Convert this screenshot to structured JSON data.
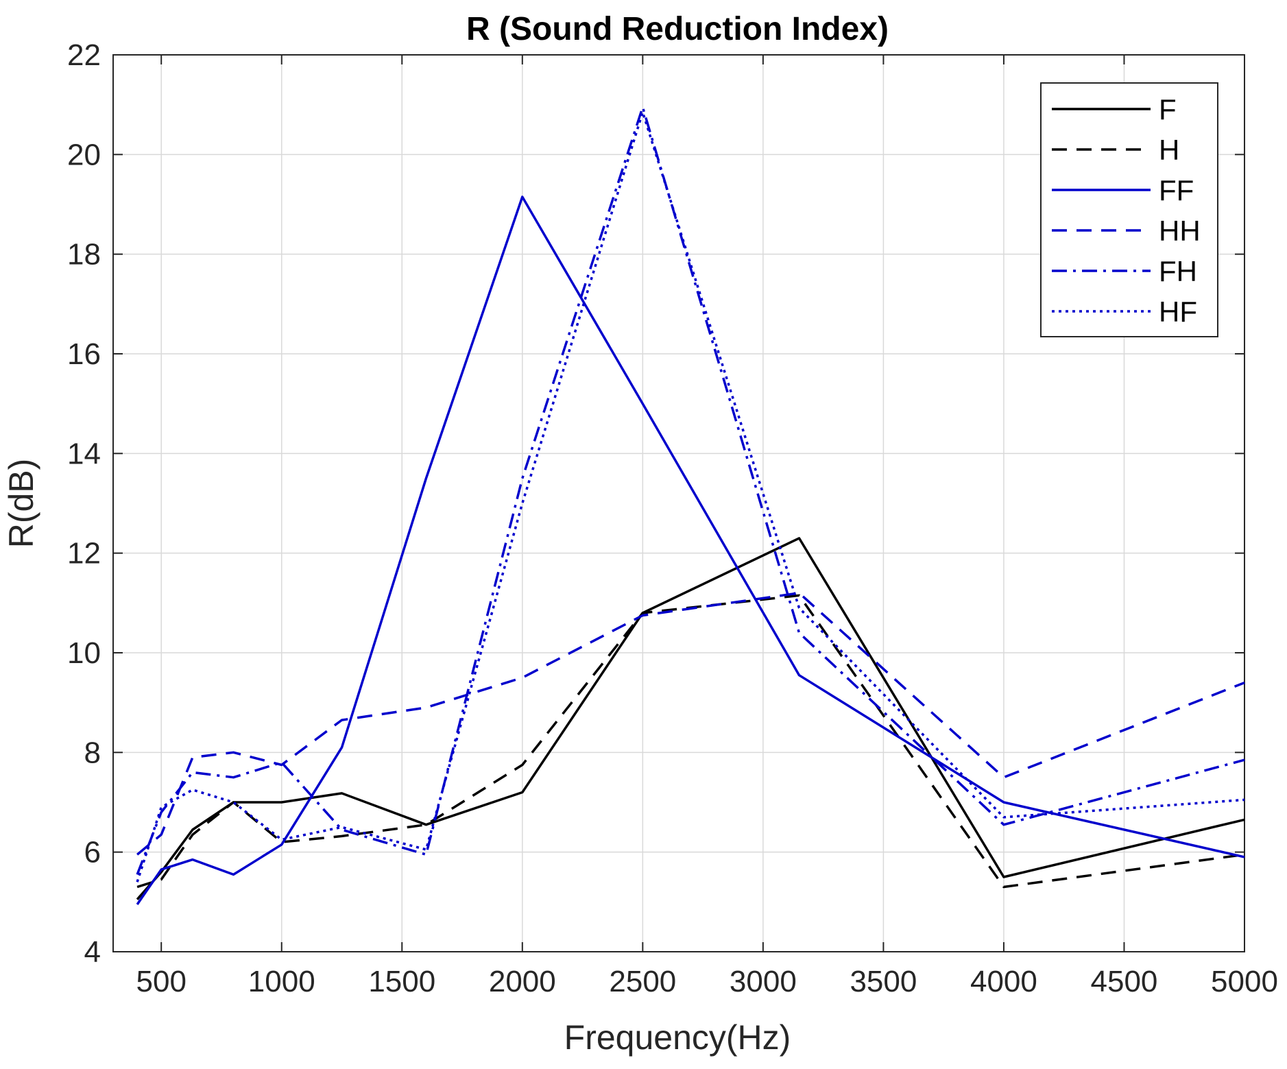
{
  "chart_data": {
    "type": "line",
    "title": "R (Sound Reduction Index)",
    "xlabel": "Frequency(Hz)",
    "ylabel": "R(dB)",
    "xlim": [
      300,
      5000
    ],
    "ylim": [
      4,
      22
    ],
    "xticks": [
      500,
      1000,
      1500,
      2000,
      2500,
      3000,
      3500,
      4000,
      4500,
      5000
    ],
    "yticks": [
      4,
      6,
      8,
      10,
      12,
      14,
      16,
      18,
      20,
      22
    ],
    "grid": true,
    "legend_position": "top-right",
    "x": [
      400,
      500,
      630,
      800,
      1000,
      1250,
      1600,
      2000,
      2500,
      3150,
      4000,
      5000
    ],
    "series": [
      {
        "name": "F",
        "color": "#000000",
        "dash": "solid",
        "values": [
          5.05,
          5.6,
          6.45,
          7.0,
          7.0,
          7.18,
          6.55,
          7.2,
          10.8,
          12.3,
          5.5,
          6.65
        ]
      },
      {
        "name": "H",
        "color": "#000000",
        "dash": "dashed",
        "values": [
          5.3,
          5.45,
          6.35,
          7.0,
          6.2,
          6.32,
          6.55,
          7.75,
          10.8,
          11.15,
          5.3,
          5.95
        ]
      },
      {
        "name": "FF",
        "color": "#0000cc",
        "dash": "solid",
        "values": [
          4.95,
          5.65,
          5.85,
          5.55,
          6.15,
          8.1,
          13.5,
          19.15,
          15.0,
          9.55,
          7.0,
          5.9
        ]
      },
      {
        "name": "HH",
        "color": "#0000cc",
        "dash": "dashed",
        "values": [
          5.95,
          6.35,
          7.9,
          8.0,
          7.75,
          8.65,
          8.9,
          9.5,
          10.75,
          11.2,
          7.5,
          9.4
        ]
      },
      {
        "name": "FH",
        "color": "#0000cc",
        "dash": "dashdot",
        "values": [
          5.55,
          6.8,
          7.6,
          7.5,
          7.8,
          6.45,
          5.95,
          13.5,
          20.95,
          10.4,
          6.55,
          7.85
        ]
      },
      {
        "name": "HF",
        "color": "#0000cc",
        "dash": "dotted",
        "values": [
          5.4,
          6.9,
          7.25,
          7.0,
          6.25,
          6.5,
          6.05,
          13.0,
          20.85,
          10.9,
          6.7,
          7.05
        ]
      }
    ]
  }
}
